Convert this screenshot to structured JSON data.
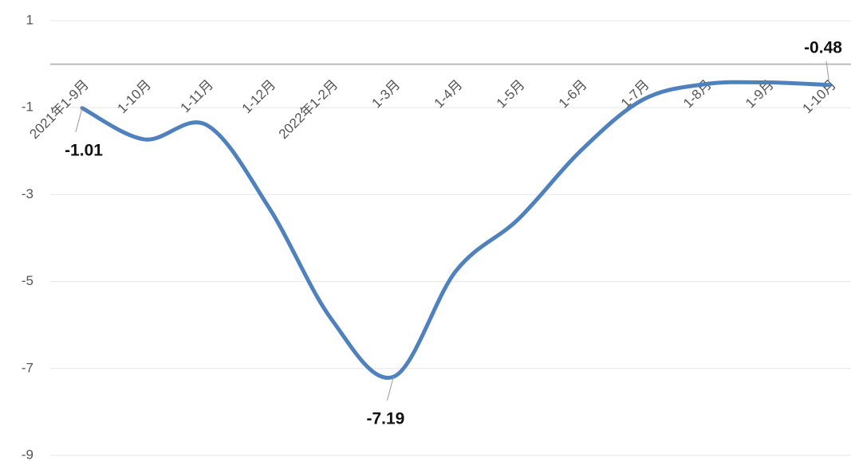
{
  "chart_data": {
    "type": "line",
    "categories": [
      "2021年1-9月",
      "1-10月",
      "1-11月",
      "1-12月",
      "2022年1-2月",
      "1-3月",
      "1-4月",
      "1-5月",
      "1-6月",
      "1-7月",
      "1-8月",
      "1-9月",
      "1-10月"
    ],
    "series": [
      {
        "color": "#4f81bd",
        "values": [
          -1.01,
          -1.73,
          -1.4,
          -3.3,
          -5.86,
          -7.19,
          -4.76,
          -3.57,
          -2.0,
          -0.82,
          -0.46,
          -0.42,
          -0.48
        ],
        "value_labels": [
          "-1.01",
          null,
          null,
          null,
          null,
          "-7.19",
          null,
          null,
          null,
          null,
          null,
          null,
          "-0.48"
        ]
      }
    ],
    "ylim": [
      -9,
      1
    ],
    "yticks": [
      1,
      -1,
      -3,
      -5,
      -7,
      -9
    ],
    "grid": true
  }
}
